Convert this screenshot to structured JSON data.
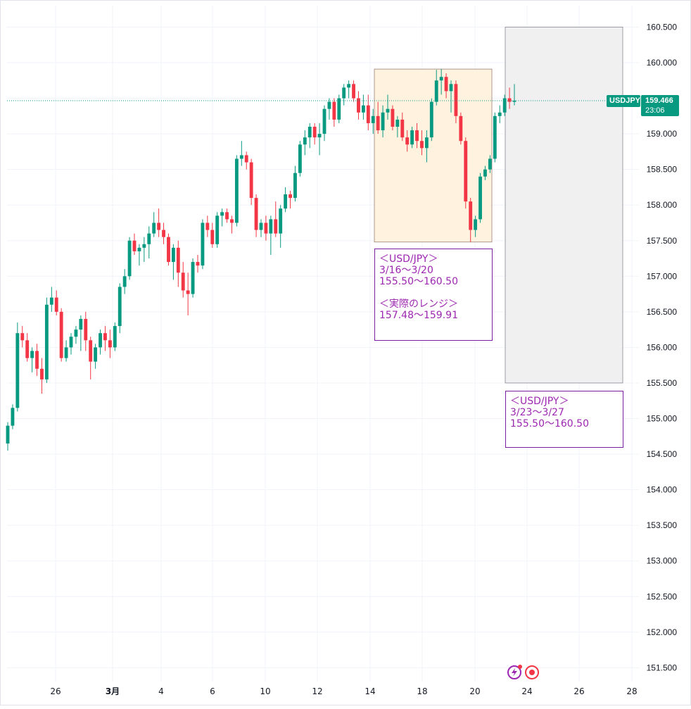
{
  "chart_data": {
    "type": "candlestick",
    "symbol": "USDJPY",
    "last_price": "159.466",
    "countdown": "23:06",
    "y_ticks": [
      "160.500",
      "160.000",
      "159.500",
      "159.000",
      "158.500",
      "158.000",
      "157.500",
      "157.000",
      "156.500",
      "156.000",
      "155.500",
      "155.000",
      "154.500",
      "154.000",
      "153.500",
      "153.000",
      "152.500",
      "152.000",
      "151.500"
    ],
    "x_ticks": [
      "26",
      "3月",
      "4",
      "6",
      "10",
      "12",
      "14",
      "18",
      "20",
      "24",
      "26",
      "28"
    ],
    "ylim": [
      151.3,
      160.95
    ],
    "candles": [
      [
        154.65,
        154.95,
        154.55,
        154.9
      ],
      [
        154.9,
        155.2,
        154.85,
        155.15
      ],
      [
        155.15,
        156.35,
        155.1,
        156.2
      ],
      [
        156.2,
        156.3,
        156.0,
        156.1
      ],
      [
        156.1,
        156.2,
        155.8,
        155.85
      ],
      [
        155.85,
        156.0,
        155.65,
        155.95
      ],
      [
        155.95,
        156.05,
        155.6,
        155.7
      ],
      [
        155.7,
        155.85,
        155.35,
        155.55
      ],
      [
        155.55,
        156.7,
        155.5,
        156.6
      ],
      [
        156.6,
        156.85,
        156.5,
        156.7
      ],
      [
        156.7,
        156.8,
        156.45,
        156.5
      ],
      [
        156.5,
        156.55,
        155.8,
        155.85
      ],
      [
        155.85,
        156.1,
        155.8,
        156.0
      ],
      [
        156.0,
        156.2,
        155.9,
        156.15
      ],
      [
        156.15,
        156.3,
        156.05,
        156.25
      ],
      [
        156.25,
        156.45,
        155.95,
        156.4
      ],
      [
        156.4,
        156.5,
        155.95,
        156.1
      ],
      [
        156.1,
        156.15,
        155.55,
        155.8
      ],
      [
        155.8,
        156.05,
        155.7,
        156.0
      ],
      [
        156.0,
        156.25,
        155.9,
        156.2
      ],
      [
        156.2,
        156.3,
        155.95,
        156.1
      ],
      [
        156.1,
        156.25,
        155.85,
        156.0
      ],
      [
        156.0,
        156.35,
        155.95,
        156.3
      ],
      [
        156.3,
        156.9,
        156.2,
        156.85
      ],
      [
        156.85,
        157.1,
        156.75,
        157.0
      ],
      [
        157.0,
        157.55,
        156.95,
        157.5
      ],
      [
        157.5,
        157.6,
        157.3,
        157.35
      ],
      [
        157.35,
        157.45,
        157.15,
        157.4
      ],
      [
        157.4,
        157.55,
        157.2,
        157.45
      ],
      [
        157.45,
        157.7,
        157.25,
        157.6
      ],
      [
        157.6,
        157.9,
        157.55,
        157.75
      ],
      [
        157.75,
        157.95,
        157.55,
        157.65
      ],
      [
        157.65,
        157.75,
        157.45,
        157.55
      ],
      [
        157.55,
        157.6,
        157.15,
        157.2
      ],
      [
        157.2,
        157.45,
        156.95,
        157.4
      ],
      [
        157.4,
        157.5,
        156.85,
        157.05
      ],
      [
        157.05,
        157.2,
        156.7,
        156.8
      ],
      [
        156.8,
        157.05,
        156.45,
        156.75
      ],
      [
        156.75,
        157.25,
        156.7,
        157.2
      ],
      [
        157.2,
        157.3,
        157.05,
        157.15
      ],
      [
        157.15,
        157.8,
        157.1,
        157.75
      ],
      [
        157.75,
        157.85,
        157.55,
        157.65
      ],
      [
        157.65,
        157.75,
        157.4,
        157.45
      ],
      [
        157.45,
        157.9,
        157.4,
        157.85
      ],
      [
        157.85,
        157.95,
        157.7,
        157.9
      ],
      [
        157.9,
        157.95,
        157.75,
        157.8
      ],
      [
        157.8,
        157.85,
        157.6,
        157.75
      ],
      [
        157.75,
        158.7,
        157.7,
        158.65
      ],
      [
        158.65,
        158.9,
        158.55,
        158.7
      ],
      [
        158.7,
        158.75,
        158.5,
        158.6
      ],
      [
        158.6,
        158.65,
        158.0,
        158.1
      ],
      [
        158.1,
        158.15,
        157.55,
        157.65
      ],
      [
        157.65,
        157.8,
        157.55,
        157.75
      ],
      [
        157.75,
        157.85,
        157.5,
        157.6
      ],
      [
        157.6,
        157.85,
        157.3,
        157.8
      ],
      [
        157.8,
        158.05,
        157.55,
        157.6
      ],
      [
        157.6,
        158.0,
        157.4,
        157.95
      ],
      [
        157.95,
        158.25,
        157.9,
        158.15
      ],
      [
        158.15,
        158.2,
        157.95,
        158.1
      ],
      [
        158.1,
        158.55,
        158.05,
        158.45
      ],
      [
        158.45,
        158.9,
        158.4,
        158.85
      ],
      [
        158.85,
        159.05,
        158.7,
        158.95
      ],
      [
        158.95,
        159.15,
        158.8,
        159.1
      ],
      [
        159.1,
        159.15,
        158.85,
        158.95
      ],
      [
        158.95,
        159.15,
        158.7,
        159.0
      ],
      [
        159.0,
        159.4,
        158.9,
        159.35
      ],
      [
        159.35,
        159.5,
        159.2,
        159.45
      ],
      [
        159.45,
        159.5,
        159.1,
        159.2
      ],
      [
        159.2,
        159.55,
        159.15,
        159.5
      ],
      [
        159.5,
        159.7,
        159.4,
        159.65
      ],
      [
        159.65,
        159.75,
        159.5,
        159.7
      ],
      [
        159.7,
        159.75,
        159.45,
        159.5
      ],
      [
        159.5,
        159.6,
        159.2,
        159.3
      ],
      [
        159.3,
        159.55,
        159.2,
        159.4
      ],
      [
        159.4,
        159.55,
        159.05,
        159.15
      ],
      [
        159.15,
        159.35,
        159.0,
        159.25
      ],
      [
        159.25,
        159.45,
        159.0,
        159.05
      ],
      [
        159.05,
        159.4,
        158.95,
        159.3
      ],
      [
        159.3,
        159.55,
        159.2,
        159.35
      ],
      [
        159.35,
        159.4,
        159.05,
        159.1
      ],
      [
        159.1,
        159.25,
        158.95,
        159.2
      ],
      [
        159.2,
        159.3,
        158.9,
        158.95
      ],
      [
        158.95,
        159.05,
        158.75,
        158.85
      ],
      [
        158.85,
        159.1,
        158.8,
        159.05
      ],
      [
        159.05,
        159.15,
        158.8,
        158.9
      ],
      [
        158.9,
        159.05,
        158.7,
        158.8
      ],
      [
        158.8,
        159.05,
        158.6,
        158.95
      ],
      [
        158.95,
        159.5,
        158.9,
        159.45
      ],
      [
        159.45,
        159.9,
        159.4,
        159.75
      ],
      [
        159.75,
        159.91,
        159.55,
        159.8
      ],
      [
        159.8,
        159.85,
        159.5,
        159.6
      ],
      [
        159.6,
        159.75,
        159.3,
        159.7
      ],
      [
        159.7,
        159.75,
        159.15,
        159.25
      ],
      [
        159.25,
        159.3,
        158.85,
        158.9
      ],
      [
        158.9,
        158.95,
        157.95,
        158.05
      ],
      [
        158.05,
        158.1,
        157.48,
        157.65
      ],
      [
        157.65,
        157.85,
        157.55,
        157.8
      ],
      [
        157.8,
        158.45,
        157.75,
        158.4
      ],
      [
        158.4,
        158.55,
        158.35,
        158.5
      ],
      [
        158.5,
        158.7,
        158.45,
        158.65
      ],
      [
        158.65,
        159.3,
        158.6,
        159.25
      ],
      [
        159.25,
        159.4,
        159.15,
        159.3
      ],
      [
        159.3,
        159.55,
        159.25,
        159.5
      ],
      [
        159.5,
        159.65,
        159.35,
        159.45
      ],
      [
        159.45,
        159.7,
        159.4,
        159.466
      ]
    ],
    "ranges": [
      {
        "label_lines": [
          "＜USD/JPY＞",
          "3/16〜3/20",
          "155.50〜160.50",
          "",
          "＜実際のレンジ＞",
          "157.48〜159.91"
        ]
      },
      {
        "label_lines": [
          "＜USD/JPY＞",
          "3/23〜3/27",
          "155.50〜160.50"
        ]
      }
    ],
    "colors": {
      "up": "#089981",
      "down": "#f23645",
      "grid": "#f0f3fa",
      "axis_text": "#131722",
      "range_fill": "#fff3e0",
      "forecast_fill": "#f0f0f0",
      "annotation": "#9c27b0",
      "price_tag": "#089981"
    }
  },
  "icons": [
    "lightning-icon",
    "record-icon"
  ]
}
